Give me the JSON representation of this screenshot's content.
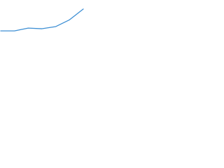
{
  "chart_data": {
    "type": "line",
    "categories": [
      null,
      null,
      null,
      null,
      null,
      null,
      null
    ],
    "series": [
      {
        "color": "#3d8fd4",
        "values": [
          2,
          2,
          11,
          9,
          16,
          38,
          73
        ]
      }
    ],
    "ylim": [
      0,
      100
    ]
  }
}
